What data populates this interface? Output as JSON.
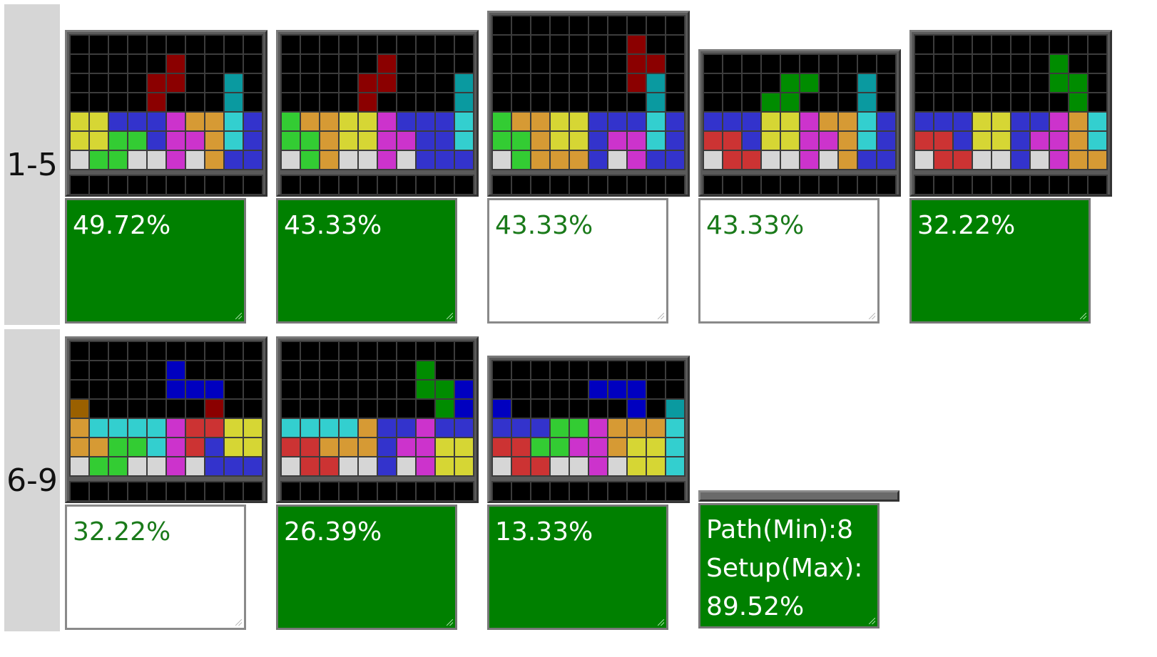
{
  "colors": {
    "k": "#000000",
    "R": "#8b0000",
    "T": "#0a9aa0",
    "I": "#33cfcf",
    "B": "#3333cc",
    "N": "#0000c0",
    "Y": "#d6d634",
    "O": "#d69a34",
    "G": "#33cc33",
    "E": "#008c00",
    "M": "#cc33cc",
    "r": "#cc3333",
    "W": "#d6d6d6",
    "o": "#9a6000"
  },
  "row_labels": [
    "1-5",
    "6-9"
  ],
  "boards": [
    {
      "label": "49.72%",
      "state": "green",
      "rows": [
        "kkkkkkkkkk",
        "kkkkkRkkkk",
        "kkkkRRkkTk",
        "kkkkRkkkTk",
        "YYBBBMOOIB",
        "YYGGBMMOIB",
        "WGGWWMWOBB"
      ]
    },
    {
      "label": "43.33%",
      "state": "green",
      "rows": [
        "kkkkkkkkkk",
        "kkkkkRkkkk",
        "kkkkRRkkkT",
        "kkkkRkkkkT",
        "GOOYYMBBBI",
        "GGOYYMMBBI",
        "WGOWWMWBBB"
      ]
    },
    {
      "label": "43.33%",
      "state": "white",
      "rows": [
        "kkkkkkkkkk",
        "kkkkkkkRkk",
        "kkkkkkkRRk",
        "kkkkkkkRTk",
        "kkkkkkkkTk",
        "GOOYYBBBIB",
        "GGOYYBMMIB",
        "WGOOOBWMBB"
      ]
    },
    {
      "label": "43.33%",
      "state": "white",
      "rows": [
        "kkkkkkkkkk",
        "kkkkEEkkTk",
        "kkkEEkkkTk",
        "BBBYYMOOIB",
        "rrBYYMMOIB",
        "WrrWWMWOBB"
      ]
    },
    {
      "label": "32.22%",
      "state": "green",
      "rows": [
        "kkkkkkkkkk",
        "kkkkkkkEkk",
        "kkkkkkkEEk",
        "kkkkkkkkEk",
        "BBBYYBBMOI",
        "rrBYYBMMOI",
        "WrrWWBWMOO"
      ]
    },
    {
      "label": "32.22%",
      "state": "white",
      "rows": [
        "kkkkkkkkkk",
        "kkkkkNkkkk",
        "kkkkkNNNkk",
        "okkkkkkRkk",
        "OIIIIMrrYY",
        "OOGGIMrBYY",
        "WGGWWMWBBB"
      ]
    },
    {
      "label": "26.39%",
      "state": "green",
      "rows": [
        "kkkkkkkkkk",
        "kkkkkkkEkk",
        "kkkkkkkEEN",
        "kkkkkkkkEN",
        "IIIIOBBMBB",
        "rrOOOBMMYY",
        "WrrWWBWMYY"
      ]
    },
    {
      "label": "13.33%",
      "state": "green",
      "rows": [
        "kkkkkkkkkk",
        "kkkkkNNNkk",
        "NkkkkkkNkT",
        "BBBGGMOOOI",
        "rrGGMMOYYI",
        "WrrWWMWYYI"
      ]
    }
  ],
  "summary": {
    "line1": "Path(Min):8",
    "line2": "Setup(Max):",
    "line3": "89.52%",
    "state": "green"
  }
}
